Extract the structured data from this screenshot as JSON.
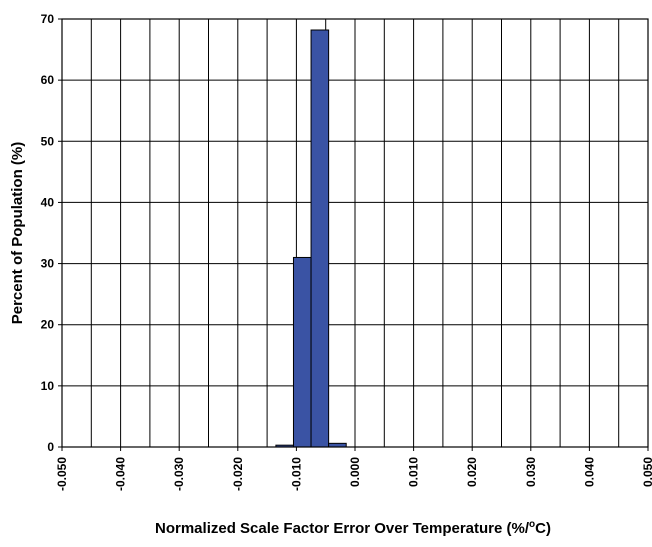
{
  "chart_data": {
    "type": "bar",
    "title": "",
    "xlabel_parts": [
      "Normalized Scale Factor Error Over Temperature (%/",
      "o",
      "C)"
    ],
    "ylabel": "Percent of Population (%)",
    "xlim": [
      -0.05,
      0.05
    ],
    "ylim": [
      0,
      70
    ],
    "x_tick_labels": [
      "-0.050",
      "-0.040",
      "-0.030",
      "-0.020",
      "-0.010",
      "0.000",
      "0.010",
      "0.020",
      "0.030",
      "0.040",
      "0.050"
    ],
    "x_tick_values": [
      -0.05,
      -0.04,
      -0.03,
      -0.02,
      -0.01,
      0.0,
      0.01,
      0.02,
      0.03,
      0.04,
      0.05
    ],
    "y_tick_labels": [
      "0",
      "10",
      "20",
      "30",
      "40",
      "50",
      "60",
      "70"
    ],
    "y_tick_values": [
      0,
      10,
      20,
      30,
      40,
      50,
      60,
      70
    ],
    "x_grid_step": 0.005,
    "grid": true,
    "bins": [
      {
        "x0": -0.0135,
        "x1": -0.0105,
        "value": 0.3
      },
      {
        "x0": -0.0105,
        "x1": -0.0075,
        "value": 31
      },
      {
        "x0": -0.0075,
        "x1": -0.0045,
        "value": 68.2
      },
      {
        "x0": -0.0045,
        "x1": -0.0015,
        "value": 0.6
      }
    ],
    "bar_color": "#3a53a4",
    "bar_edge_color": "#000000"
  }
}
